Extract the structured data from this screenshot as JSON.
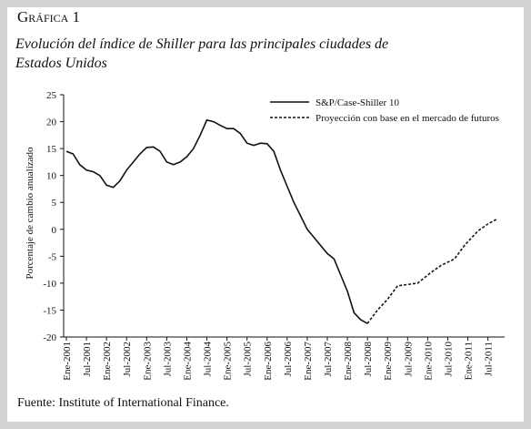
{
  "header": {
    "title": "Gráfica 1",
    "subtitle": "Evolución del índice de Shiller para las principales ciudades de Estados Unidos"
  },
  "footer": {
    "source": "Fuente: Institute of International Finance."
  },
  "chart_data": {
    "type": "line",
    "ylabel": "Porcentaje de cambio anualizado",
    "ylim": [
      -20,
      25
    ],
    "yticks": [
      -20,
      -15,
      -10,
      -5,
      0,
      5,
      10,
      15,
      20,
      25
    ],
    "xlim": [
      "2001-01",
      "2011-12"
    ],
    "xticks": [
      {
        "value": "2001-01",
        "label": "Ene-2001"
      },
      {
        "value": "2001-07",
        "label": "Jul-2001"
      },
      {
        "value": "2002-01",
        "label": "Ene-2002"
      },
      {
        "value": "2002-07",
        "label": "Jul-2002"
      },
      {
        "value": "2003-01",
        "label": "Ene-2003"
      },
      {
        "value": "2003-07",
        "label": "Jul-2003"
      },
      {
        "value": "2004-01",
        "label": "Ene-2004"
      },
      {
        "value": "2004-07",
        "label": "Jul-2004"
      },
      {
        "value": "2005-01",
        "label": "Ene-2005"
      },
      {
        "value": "2005-07",
        "label": "Jul-2005"
      },
      {
        "value": "2006-01",
        "label": "Ene-2006"
      },
      {
        "value": "2006-07",
        "label": "Jul-2006"
      },
      {
        "value": "2007-01",
        "label": "Ene-2007"
      },
      {
        "value": "2007-07",
        "label": "Jul-2007"
      },
      {
        "value": "2008-01",
        "label": "Ene-2008"
      },
      {
        "value": "2008-07",
        "label": "Jul-2008"
      },
      {
        "value": "2009-01",
        "label": "Ene-2009"
      },
      {
        "value": "2009-07",
        "label": "Jul-2009"
      },
      {
        "value": "2010-01",
        "label": "Ene-2010"
      },
      {
        "value": "2010-07",
        "label": "Jul-2010"
      },
      {
        "value": "2011-01",
        "label": "Ene-2011"
      },
      {
        "value": "2011-07",
        "label": "Jul-2011"
      }
    ],
    "series": [
      {
        "name": "S&P/Case-Shiller 10",
        "color": "#111111",
        "dash": "solid",
        "x": [
          "2001-01",
          "2001-03",
          "2001-05",
          "2001-07",
          "2001-09",
          "2001-11",
          "2002-01",
          "2002-03",
          "2002-05",
          "2002-07",
          "2002-09",
          "2002-11",
          "2003-01",
          "2003-03",
          "2003-05",
          "2003-07",
          "2003-09",
          "2003-11",
          "2004-01",
          "2004-03",
          "2004-05",
          "2004-07",
          "2004-09",
          "2004-11",
          "2005-01",
          "2005-03",
          "2005-05",
          "2005-07",
          "2005-09",
          "2005-11",
          "2006-01",
          "2006-03",
          "2006-05",
          "2006-07",
          "2006-09",
          "2006-11",
          "2007-01",
          "2007-03",
          "2007-05",
          "2007-07",
          "2007-09",
          "2007-11",
          "2008-01",
          "2008-03",
          "2008-05",
          "2008-07"
        ],
        "values": [
          14.5,
          14,
          12,
          11,
          10.7,
          10,
          8.2,
          7.8,
          9,
          11,
          12.5,
          14,
          15.2,
          15.3,
          14.5,
          12.5,
          12,
          12.5,
          13.5,
          15,
          17.5,
          20.3,
          20,
          19.3,
          18.7,
          18.7,
          17.8,
          16,
          15.6,
          16,
          15.9,
          14.5,
          11,
          8,
          5,
          2.5,
          0,
          -1.5,
          -3,
          -4.5,
          -5.5,
          -8.5,
          -11.5,
          -15.5,
          -16.8,
          -17.5
        ]
      },
      {
        "name": "Proyección con base en el mercado de futuros",
        "color": "#111111",
        "dash": "dashed",
        "x": [
          "2008-07",
          "2008-10",
          "2009-01",
          "2009-04",
          "2009-10",
          "2010-02",
          "2010-05",
          "2010-09",
          "2010-12",
          "2011-04",
          "2011-07",
          "2011-10"
        ],
        "values": [
          -17.5,
          -15,
          -13,
          -10.5,
          -10,
          -8,
          -6.7,
          -5.5,
          -3,
          -0.3,
          1,
          2
        ]
      }
    ]
  }
}
